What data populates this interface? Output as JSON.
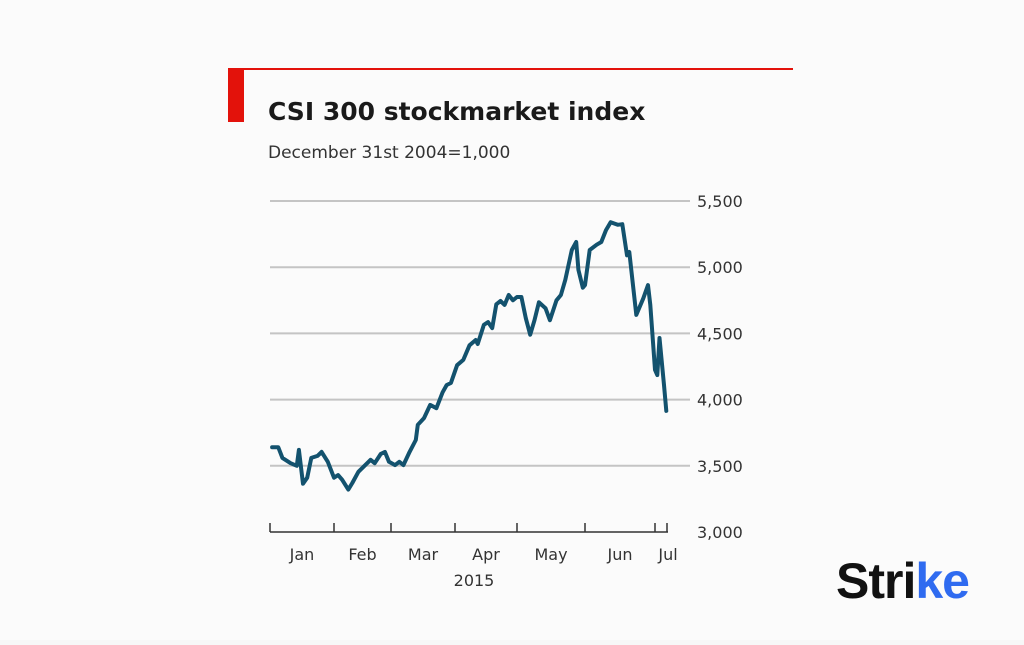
{
  "chart_data": {
    "type": "line",
    "title": "CSI 300 stockmarket index",
    "subtitle": "December 31st 2004=1,000",
    "xlabel": "2015",
    "ylabel": "",
    "ylim": [
      3000,
      5500
    ],
    "yticks": [
      3000,
      3500,
      4000,
      4500,
      5000,
      5500
    ],
    "ytick_labels": [
      "3,000",
      "3,500",
      "4,000",
      "4,500",
      "5,000",
      "5,500"
    ],
    "xtick_labels": [
      "Jan",
      "Feb",
      "Mar",
      "Apr",
      "May",
      "Jun",
      "Jul"
    ],
    "y_axis_side": "right",
    "grid": true,
    "line_color": "#13526e",
    "accent_color": "#e3120b",
    "series": [
      {
        "x": [
          "2015-01-02",
          "2015-01-05",
          "2015-01-07",
          "2015-01-11",
          "2015-01-14",
          "2015-01-15",
          "2015-01-17",
          "2015-01-19",
          "2015-01-21",
          "2015-01-24",
          "2015-01-26",
          "2015-01-29",
          "2015-02-01",
          "2015-02-03",
          "2015-02-05",
          "2015-02-08",
          "2015-02-10",
          "2015-02-13",
          "2015-02-16",
          "2015-02-19",
          "2015-02-21",
          "2015-02-24",
          "2015-02-26",
          "2015-02-28",
          "2015-03-03",
          "2015-03-05",
          "2015-03-07",
          "2015-03-10",
          "2015-03-13",
          "2015-03-14",
          "2015-03-17",
          "2015-03-20",
          "2015-03-23",
          "2015-03-26",
          "2015-03-28",
          "2015-03-30",
          "2015-04-02",
          "2015-04-05",
          "2015-04-08",
          "2015-04-11",
          "2015-04-12",
          "2015-04-15",
          "2015-04-17",
          "2015-04-19",
          "2015-04-21",
          "2015-04-23",
          "2015-04-25",
          "2015-04-27",
          "2015-04-29",
          "2015-05-01",
          "2015-05-03",
          "2015-05-05",
          "2015-05-07",
          "2015-05-09",
          "2015-05-11",
          "2015-05-14",
          "2015-05-16",
          "2015-05-19",
          "2015-05-21",
          "2015-05-23",
          "2015-05-26",
          "2015-05-28",
          "2015-05-29",
          "2015-05-31",
          "2015-06-01",
          "2015-06-03",
          "2015-06-06",
          "2015-06-08",
          "2015-06-10",
          "2015-06-12",
          "2015-06-15",
          "2015-06-17",
          "2015-06-19",
          "2015-06-20",
          "2015-06-23",
          "2015-06-26",
          "2015-06-28",
          "2015-06-29",
          "2015-07-01",
          "2015-07-02",
          "2015-07-03",
          "2015-07-05",
          "2015-07-06"
        ],
        "values": [
          3640,
          3640,
          3560,
          3520,
          3500,
          3620,
          3365,
          3410,
          3560,
          3575,
          3605,
          3530,
          3410,
          3430,
          3395,
          3320,
          3370,
          3455,
          3500,
          3545,
          3520,
          3590,
          3605,
          3530,
          3505,
          3530,
          3505,
          3605,
          3695,
          3810,
          3860,
          3960,
          3935,
          4055,
          4110,
          4125,
          4260,
          4300,
          4410,
          4450,
          4420,
          4565,
          4585,
          4540,
          4720,
          4745,
          4715,
          4790,
          4750,
          4775,
          4775,
          4615,
          4490,
          4600,
          4735,
          4690,
          4600,
          4750,
          4790,
          4905,
          5130,
          5190,
          4980,
          4845,
          4865,
          5130,
          5170,
          5190,
          5280,
          5340,
          5320,
          5325,
          5090,
          5115,
          4640,
          4765,
          4865,
          4715,
          4225,
          4185,
          4465,
          4110,
          3915
        ]
      }
    ]
  },
  "logo": {
    "text": "Strike"
  }
}
